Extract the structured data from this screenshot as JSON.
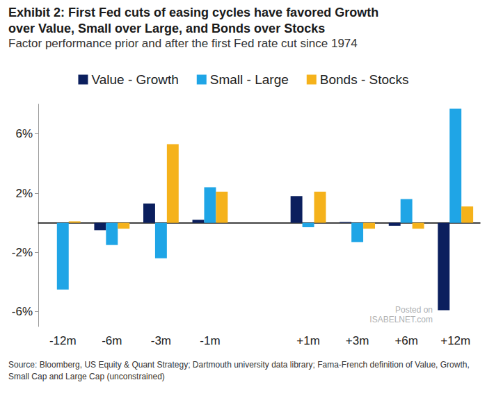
{
  "chart_data": {
    "type": "bar",
    "title": "Exhibit 2: First Fed cuts of easing cycles have favored Growth over Value, Small over Large, and Bonds over Stocks",
    "subtitle": "Factor performance prior and after the first Fed rate cut since 1974",
    "source": "Source: Bloomberg, US Equity & Quant Strategy; Dartmouth university data library; Fama-French definition of Value, Growth, Small Cap and Large Cap (unconstrained)",
    "annotations": [
      "Posted on",
      "ISABELNET.com"
    ],
    "categories": [
      "-12m",
      "-6m",
      "-3m",
      "-1m",
      null,
      "+1m",
      "+3m",
      "+6m",
      "+12m"
    ],
    "series": [
      {
        "name": "Value - Growth",
        "color": "#0b1f5e",
        "values": [
          0,
          -0.5,
          1.3,
          0.2,
          null,
          1.8,
          0.05,
          -0.2,
          -5.9
        ]
      },
      {
        "name": "Small - Large",
        "color": "#1fa5e6",
        "values": [
          -4.5,
          -1.5,
          -2.4,
          2.4,
          null,
          -0.3,
          -1.3,
          1.6,
          7.7
        ]
      },
      {
        "name": "Bonds - Stocks",
        "color": "#f5b21b",
        "values": [
          0.1,
          -0.4,
          5.3,
          2.1,
          null,
          2.1,
          -0.4,
          -0.4,
          1.1
        ]
      }
    ],
    "ylim": [
      -7,
      8
    ],
    "yticks": [
      {
        "value": -6,
        "label": "-6%"
      },
      {
        "value": -2,
        "label": "-2%"
      },
      {
        "value": 2,
        "label": "2%"
      },
      {
        "value": 6,
        "label": "6%"
      }
    ],
    "grid": false,
    "legend": "top"
  }
}
